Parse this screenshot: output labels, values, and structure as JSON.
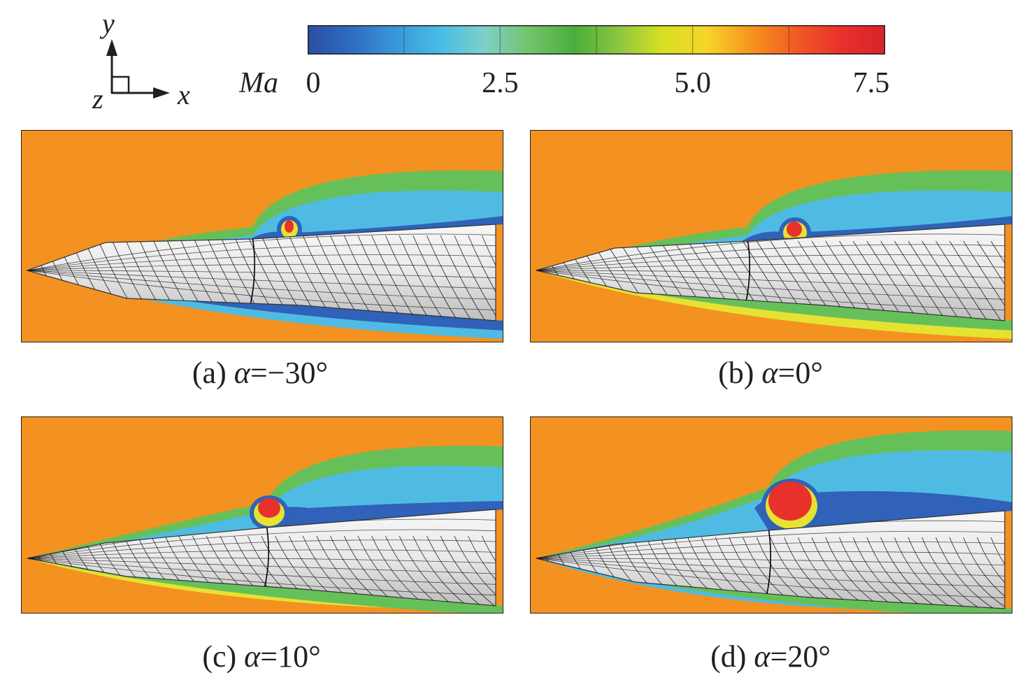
{
  "coordinate_system": {
    "y_label": "y",
    "x_label": "x",
    "z_label": "z"
  },
  "colorbar": {
    "title": "Ma",
    "ticks": [
      "0",
      "2.5",
      "5.0",
      "7.5"
    ],
    "min": 0,
    "max": 7.5,
    "colors": [
      "#2b4ea3",
      "#2f6cc0",
      "#3a98d8",
      "#49bde6",
      "#7fd0c8",
      "#72c36a",
      "#4aae3c",
      "#8cc63f",
      "#d9e021",
      "#f6d42a",
      "#f7931e",
      "#f15a24",
      "#e8312b",
      "#d8232a"
    ]
  },
  "panels": [
    {
      "id": "a",
      "prefix": "(a) ",
      "symbol": "α",
      "value": "=−30°",
      "alpha_deg": -30
    },
    {
      "id": "b",
      "prefix": "(b) ",
      "symbol": "α",
      "value": "=0°",
      "alpha_deg": 0
    },
    {
      "id": "c",
      "prefix": "(c) ",
      "symbol": "α",
      "value": "=10°",
      "alpha_deg": 10
    },
    {
      "id": "d",
      "prefix": "(d) ",
      "symbol": "α",
      "value": "=20°",
      "alpha_deg": 20
    }
  ],
  "colors": {
    "freestream": "#f39220",
    "red_zone": "#e8312b",
    "blue_zone": "#2f62b8",
    "cyan_zone": "#4fbbe3",
    "green_zone": "#66c05a",
    "yellow_zone": "#e6e232",
    "body_fill": "#e9e9e9",
    "streamline": "#111111"
  }
}
